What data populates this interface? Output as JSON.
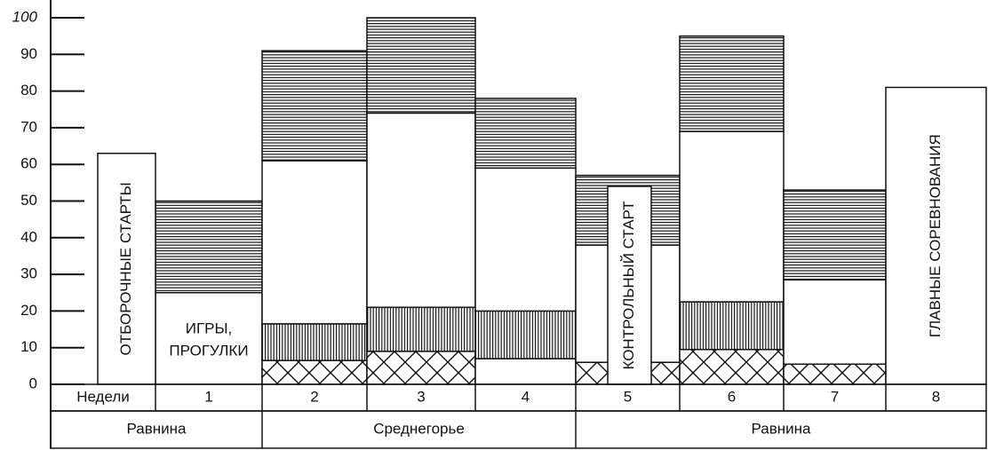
{
  "chart_data": {
    "type": "stacked-bar",
    "categories": [
      "1",
      "2",
      "3",
      "4",
      "5",
      "6",
      "7",
      "8"
    ],
    "row_label": "Недели",
    "regions": [
      "Равнина",
      "Среднегорье",
      "Равнина"
    ],
    "series": [
      {
        "pattern": "crosshatch",
        "values": [
          null,
          6.5,
          9,
          null,
          6,
          9.5,
          5.5,
          null
        ]
      },
      {
        "pattern": "white",
        "values": [
          25,
          null,
          null,
          7,
          null,
          null,
          null,
          null
        ]
      },
      {
        "pattern": "vertical",
        "values": [
          null,
          10,
          12,
          13,
          null,
          13,
          null,
          null
        ]
      },
      {
        "pattern": "white",
        "values": [
          null,
          44.5,
          53,
          39,
          32,
          46.5,
          23,
          null
        ]
      },
      {
        "pattern": "horizontal",
        "values": [
          25,
          30,
          26,
          19,
          19,
          26,
          24.5,
          null
        ]
      }
    ],
    "markers": [
      {
        "label": "ОТБОРОЧНЫЕ СТАРТЫ",
        "value": 63
      },
      {
        "label": "КОНТРОЛЬНЫЙ СТАРТ",
        "value": 54
      },
      {
        "label": "ГЛАВНЫЕ СОРЕВНОВАНИЯ",
        "value": 81
      }
    ],
    "annotation": [
      "ИГРЫ,",
      "ПРОГУЛКИ"
    ],
    "ylim": [
      0,
      100
    ],
    "yticks": [
      0,
      10,
      20,
      30,
      40,
      50,
      60,
      70,
      80,
      90,
      100
    ]
  }
}
